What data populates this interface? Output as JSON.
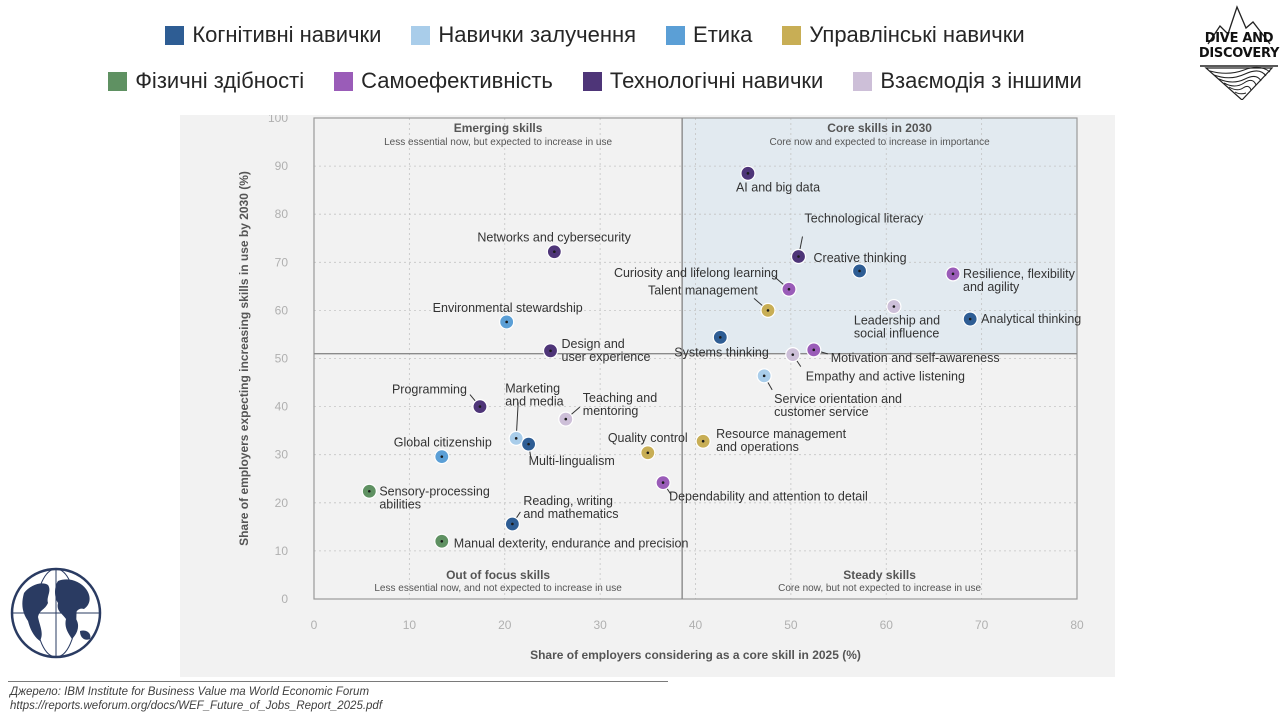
{
  "legend": {
    "row1": [
      {
        "label": "Когнітивні навички",
        "color": "#2e5d94"
      },
      {
        "label": "Навички залучення",
        "color": "#a9cdea"
      },
      {
        "label": "Етика",
        "color": "#5b9fd6"
      },
      {
        "label": "Управлінські навички",
        "color": "#c8ae55"
      }
    ],
    "row2": [
      {
        "label": "Фізичні здібності",
        "color": "#5f9162"
      },
      {
        "label": "Самоефективність",
        "color": "#9a5cb8"
      },
      {
        "label": "Технологічні навички",
        "color": "#4e3578"
      },
      {
        "label": "Взаємодія з іншими",
        "color": "#cdbfd8"
      }
    ]
  },
  "logo": {
    "line1": "DIVE AND",
    "line2": "DISCOVERY"
  },
  "source": {
    "line1": "Джерело: IBM Institute for Business Value та World Economic Forum",
    "line2": "https://reports.weforum.org/docs/WEF_Future_of_Jobs_Report_2025.pdf"
  },
  "chart_data": {
    "type": "scatter",
    "xlabel": "Share of employers considering as a core skill in 2025 (%)",
    "ylabel": "Share of employers expecting increasing skills in use by 2030 (%)",
    "xlim": [
      0,
      80
    ],
    "ylim": [
      0,
      100
    ],
    "x_ticks": [
      0,
      10,
      20,
      30,
      40,
      50,
      60,
      70,
      80
    ],
    "y_ticks": [
      0,
      10,
      20,
      30,
      40,
      50,
      60,
      70,
      80,
      90,
      100
    ],
    "divider_x": 38.6,
    "divider_y": 51,
    "quadrants": {
      "top_left": {
        "title": "Emerging skills",
        "subtitle": "Less essential now, but expected to increase in use"
      },
      "top_right": {
        "title": "Core skills in 2030",
        "subtitle": "Core now and expected to increase in importance"
      },
      "bottom_left": {
        "title": "Out of focus skills",
        "subtitle": "Less essential now, and not expected to increase in use"
      },
      "bottom_right": {
        "title": "Steady skills",
        "subtitle": "Core now, but not expected to increase in use"
      }
    },
    "colors": {
      "cognitive": "#2e5d94",
      "engagement": "#a9cdea",
      "ethics": "#5b9fd6",
      "management": "#c8ae55",
      "physical": "#5f9162",
      "self_efficacy": "#9a5cb8",
      "technology": "#4e3578",
      "working_with_others": "#cdbfd8"
    },
    "points": [
      {
        "label": "AI and big data",
        "x": 45.5,
        "y": 88.5,
        "cat": "technology"
      },
      {
        "label": "Networks and cybersecurity",
        "x": 25.2,
        "y": 72.2,
        "cat": "technology"
      },
      {
        "label": "Technological literacy",
        "x": 50.8,
        "y": 71.2,
        "cat": "technology"
      },
      {
        "label": "Creative thinking",
        "x": 57.2,
        "y": 68.2,
        "cat": "cognitive"
      },
      {
        "label": "Resilience, flexibility and agility",
        "x": 67.0,
        "y": 67.6,
        "cat": "self_efficacy"
      },
      {
        "label": "Curiosity and lifelong learning",
        "x": 49.8,
        "y": 64.4,
        "cat": "self_efficacy"
      },
      {
        "label": "Talent management",
        "x": 47.6,
        "y": 60.0,
        "cat": "management"
      },
      {
        "label": "Leadership and social influence",
        "x": 60.8,
        "y": 60.8,
        "cat": "working_with_others"
      },
      {
        "label": "Analytical thinking",
        "x": 68.8,
        "y": 58.2,
        "cat": "cognitive"
      },
      {
        "label": "Environmental stewardship",
        "x": 20.2,
        "y": 57.6,
        "cat": "ethics"
      },
      {
        "label": "Systems thinking",
        "x": 42.6,
        "y": 54.4,
        "cat": "cognitive"
      },
      {
        "label": "Design and user experience",
        "x": 24.8,
        "y": 51.6,
        "cat": "technology"
      },
      {
        "label": "Motivation and self-awareness",
        "x": 52.4,
        "y": 51.8,
        "cat": "self_efficacy"
      },
      {
        "label": "Empathy and active listening",
        "x": 50.2,
        "y": 50.8,
        "cat": "working_with_others"
      },
      {
        "label": "Service orientation and customer service",
        "x": 47.2,
        "y": 46.4,
        "cat": "engagement"
      },
      {
        "label": "Programming",
        "x": 17.4,
        "y": 40.0,
        "cat": "technology"
      },
      {
        "label": "Teaching and mentoring",
        "x": 26.4,
        "y": 37.4,
        "cat": "working_with_others"
      },
      {
        "label": "Marketing and media",
        "x": 21.2,
        "y": 33.4,
        "cat": "engagement"
      },
      {
        "label": "Multi-lingualism",
        "x": 22.5,
        "y": 32.2,
        "cat": "cognitive"
      },
      {
        "label": "Resource management and operations",
        "x": 40.8,
        "y": 32.8,
        "cat": "management"
      },
      {
        "label": "Quality control",
        "x": 35.0,
        "y": 30.4,
        "cat": "management"
      },
      {
        "label": "Global citizenship",
        "x": 13.4,
        "y": 29.6,
        "cat": "ethics"
      },
      {
        "label": "Dependability and attention to detail",
        "x": 36.6,
        "y": 24.2,
        "cat": "self_efficacy"
      },
      {
        "label": "Sensory-processing abilities",
        "x": 5.8,
        "y": 22.4,
        "cat": "physical"
      },
      {
        "label": "Reading, writing and mathematics",
        "x": 20.8,
        "y": 15.6,
        "cat": "cognitive"
      },
      {
        "label": "Manual dexterity, endurance and precision",
        "x": 13.4,
        "y": 12.0,
        "cat": "physical"
      }
    ]
  }
}
